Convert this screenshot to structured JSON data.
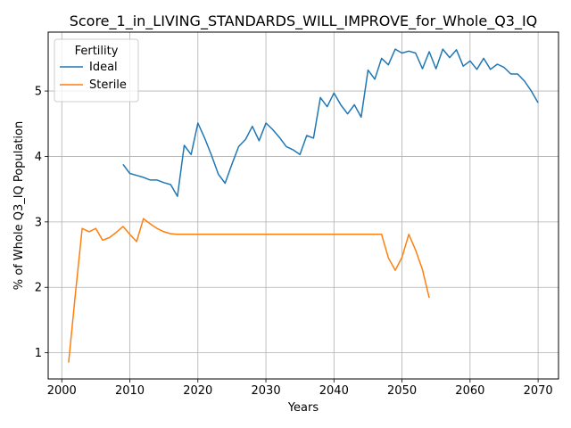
{
  "chart_data": {
    "type": "line",
    "title": "Score_1_in_LIVING_STANDARDS_WILL_IMPROVE_for_Whole_Q3_IQ",
    "xlabel": "Years",
    "ylabel": "% of Whole Q3_IQ Population",
    "xlim": [
      1998,
      2073
    ],
    "ylim": [
      0.6,
      5.9
    ],
    "xticks": [
      2000,
      2010,
      2020,
      2030,
      2040,
      2050,
      2060,
      2070
    ],
    "yticks": [
      1,
      2,
      3,
      4,
      5
    ],
    "grid": true,
    "legend": {
      "title": "Fertility",
      "placement": "top-left"
    },
    "series": [
      {
        "name": "Ideal",
        "color": "#1f77b4",
        "x": [
          2009,
          2010,
          2011,
          2012,
          2013,
          2014,
          2015,
          2016,
          2017,
          2018,
          2019,
          2020,
          2021,
          2022,
          2023,
          2024,
          2025,
          2026,
          2027,
          2028,
          2029,
          2030,
          2031,
          2032,
          2033,
          2034,
          2035,
          2036,
          2037,
          2038,
          2039,
          2040,
          2041,
          2042,
          2043,
          2044,
          2045,
          2046,
          2047,
          2048,
          2049,
          2050,
          2051,
          2052,
          2053,
          2054,
          2055,
          2056,
          2057,
          2058,
          2059,
          2060,
          2061,
          2062,
          2063,
          2064,
          2065,
          2066,
          2067,
          2068,
          2069,
          2070
        ],
        "y": [
          3.88,
          3.74,
          3.71,
          3.68,
          3.64,
          3.64,
          3.6,
          3.57,
          3.39,
          4.17,
          4.03,
          4.51,
          4.28,
          4.02,
          3.73,
          3.59,
          3.88,
          4.15,
          4.26,
          4.46,
          4.24,
          4.51,
          4.41,
          4.29,
          4.15,
          4.1,
          4.03,
          4.32,
          4.28,
          4.9,
          4.76,
          4.97,
          4.79,
          4.65,
          4.79,
          4.6,
          5.32,
          5.18,
          5.5,
          5.4,
          5.64,
          5.58,
          5.61,
          5.58,
          5.34,
          5.6,
          5.34,
          5.64,
          5.51,
          5.63,
          5.38,
          5.46,
          5.33,
          5.5,
          5.33,
          5.41,
          5.36,
          5.26,
          5.26,
          5.15,
          5.0,
          4.82
        ]
      },
      {
        "name": "Sterile",
        "color": "#ff7f0e",
        "x": [
          2001,
          2002,
          2003,
          2004,
          2005,
          2006,
          2007,
          2008,
          2009,
          2010,
          2011,
          2012,
          2013,
          2014,
          2015,
          2016,
          2017,
          2018,
          2019,
          2020,
          2021,
          2022,
          2023,
          2024,
          2025,
          2026,
          2027,
          2028,
          2029,
          2030,
          2031,
          2032,
          2033,
          2034,
          2035,
          2036,
          2037,
          2038,
          2039,
          2040,
          2041,
          2042,
          2043,
          2044,
          2045,
          2046,
          2047,
          2048,
          2049,
          2050,
          2051,
          2052,
          2053,
          2054
        ],
        "y": [
          0.85,
          1.9,
          2.9,
          2.85,
          2.9,
          2.72,
          2.76,
          2.84,
          2.93,
          2.81,
          2.7,
          3.05,
          2.97,
          2.9,
          2.85,
          2.82,
          2.81,
          2.81,
          2.81,
          2.81,
          2.81,
          2.81,
          2.81,
          2.81,
          2.81,
          2.81,
          2.81,
          2.81,
          2.81,
          2.81,
          2.81,
          2.81,
          2.81,
          2.81,
          2.81,
          2.81,
          2.81,
          2.81,
          2.81,
          2.81,
          2.81,
          2.81,
          2.81,
          2.81,
          2.81,
          2.81,
          2.81,
          2.45,
          2.26,
          2.46,
          2.81,
          2.57,
          2.27,
          1.84
        ]
      }
    ]
  }
}
